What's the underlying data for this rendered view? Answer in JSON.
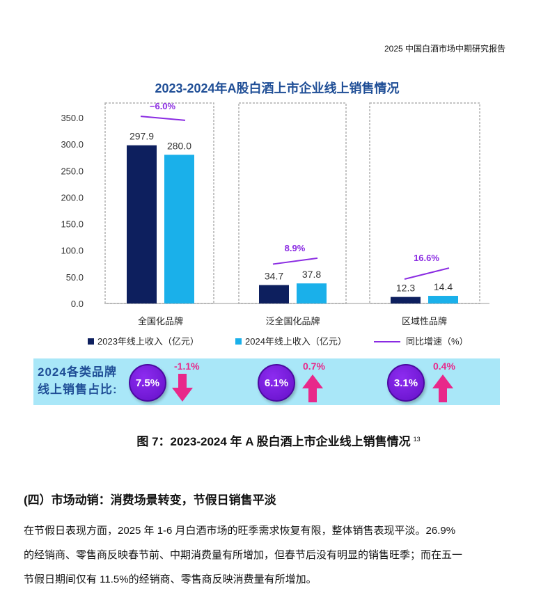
{
  "header": {
    "report_title": "2025 中国白酒市场中期研究报告"
  },
  "chart_data": {
    "type": "bar",
    "title": "2023-2024年A股白酒上市企业线上销售情况",
    "categories": [
      "全国化品牌",
      "泛全国化品牌",
      "区域性品牌"
    ],
    "series": [
      {
        "name": "2023年线上收入（亿元）",
        "color": "#0d1f5e",
        "values": [
          297.9,
          34.7,
          12.3
        ]
      },
      {
        "name": "2024年线上收入（亿元）",
        "color": "#1ab0ea",
        "values": [
          280.0,
          37.8,
          14.4
        ]
      }
    ],
    "growth": {
      "name": "同比增速（%）",
      "color": "#8a2be2",
      "labels": [
        "−6.0%",
        "8.9%",
        "16.6%"
      ],
      "values": [
        -6.0,
        8.9,
        16.6
      ]
    },
    "ylim": [
      0,
      350
    ],
    "yticks": [
      "350.0",
      "300.0",
      "250.0",
      "200.0",
      "150.0",
      "100.0",
      "50.0",
      "0.0"
    ],
    "value_labels": [
      [
        "297.9",
        "280.0"
      ],
      [
        "34.7",
        "37.8"
      ],
      [
        "12.3",
        "14.4"
      ]
    ],
    "legend_position": "bottom"
  },
  "share_panel": {
    "title_line1": "2024各类品牌",
    "title_line2": "线上销售占比:",
    "items": [
      {
        "share": "7.5%",
        "change": "-1.1%",
        "direction": "down"
      },
      {
        "share": "6.1%",
        "change": "0.7%",
        "direction": "up"
      },
      {
        "share": "3.1%",
        "change": "0.4%",
        "direction": "up"
      }
    ],
    "accent": "#e8288a"
  },
  "caption": {
    "text": "图 7：2023-2024 年 A 股白酒上市企业线上销售情况",
    "footnote": "13"
  },
  "section": {
    "heading": "(四）市场动销：消费场景转变，节假日销售平淡",
    "paragraph_lines": [
      "在节假日表现方面，2025 年 1-6 月白酒市场的旺季需求恢复有限，整体销售表现平淡。26.9%",
      "的经销商、零售商反映春节前、中期消费量有所增加，但春节后没有明显的销售旺季；而在五一",
      "节假日期间仅有 11.5%的经销商、零售商反映消费量有所增加。"
    ]
  }
}
